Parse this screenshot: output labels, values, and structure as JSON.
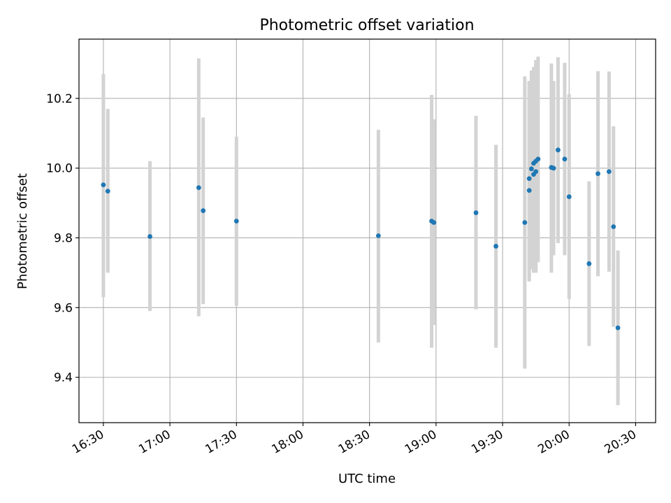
{
  "chart_data": {
    "type": "scatter",
    "title": "Photometric offset variation",
    "xlabel": "UTC time",
    "ylabel": "Photometric offset",
    "x_is_time": true,
    "xlim": [
      "16:19",
      "20:39"
    ],
    "ylim": [
      9.27,
      10.37
    ],
    "xticks": [
      "16:30",
      "17:00",
      "17:30",
      "18:00",
      "18:30",
      "19:00",
      "19:30",
      "20:00",
      "20:30"
    ],
    "yticks": [
      9.4,
      9.6,
      9.8,
      10.0,
      10.2
    ],
    "grid": true,
    "colors": {
      "point": "#1f77b4",
      "errorbar": "#d3d3d3",
      "grid": "#b0b0b0"
    },
    "points": [
      {
        "x": "16:30",
        "y": 9.952,
        "yerr_low": 9.63,
        "yerr_high": 10.27
      },
      {
        "x": "16:32",
        "y": 9.934,
        "yerr_low": 9.7,
        "yerr_high": 10.17
      },
      {
        "x": "16:51",
        "y": 9.804,
        "yerr_low": 9.59,
        "yerr_high": 10.02
      },
      {
        "x": "17:13",
        "y": 9.944,
        "yerr_low": 9.575,
        "yerr_high": 10.315
      },
      {
        "x": "17:15",
        "y": 9.878,
        "yerr_low": 9.61,
        "yerr_high": 10.145
      },
      {
        "x": "17:30",
        "y": 9.848,
        "yerr_low": 9.605,
        "yerr_high": 10.09
      },
      {
        "x": "18:34",
        "y": 9.806,
        "yerr_low": 9.5,
        "yerr_high": 10.11
      },
      {
        "x": "18:58",
        "y": 9.848,
        "yerr_low": 9.485,
        "yerr_high": 10.21
      },
      {
        "x": "18:59",
        "y": 9.844,
        "yerr_low": 9.55,
        "yerr_high": 10.14
      },
      {
        "x": "19:18",
        "y": 9.872,
        "yerr_low": 9.595,
        "yerr_high": 10.15
      },
      {
        "x": "19:27",
        "y": 9.776,
        "yerr_low": 9.485,
        "yerr_high": 10.067
      },
      {
        "x": "19:40",
        "y": 9.844,
        "yerr_low": 9.425,
        "yerr_high": 10.263
      },
      {
        "x": "19:42",
        "y": 9.936,
        "yerr_low": 9.675,
        "yerr_high": 10.25
      },
      {
        "x": "19:42",
        "y": 9.97,
        "yerr_low": 9.69,
        "yerr_high": 10.25
      },
      {
        "x": "19:43",
        "y": 9.998,
        "yerr_low": 9.71,
        "yerr_high": 10.28
      },
      {
        "x": "19:44",
        "y": 9.982,
        "yerr_low": 9.7,
        "yerr_high": 10.285
      },
      {
        "x": "19:44",
        "y": 10.014,
        "yerr_low": 9.72,
        "yerr_high": 10.29
      },
      {
        "x": "19:45",
        "y": 9.99,
        "yerr_low": 9.7,
        "yerr_high": 10.3
      },
      {
        "x": "19:45",
        "y": 10.02,
        "yerr_low": 9.73,
        "yerr_high": 10.31
      },
      {
        "x": "19:46",
        "y": 10.026,
        "yerr_low": 9.73,
        "yerr_high": 10.32
      },
      {
        "x": "19:52",
        "y": 10.002,
        "yerr_low": 9.7,
        "yerr_high": 10.3
      },
      {
        "x": "19:53",
        "y": 10.0,
        "yerr_low": 9.75,
        "yerr_high": 10.25
      },
      {
        "x": "19:55",
        "y": 10.052,
        "yerr_low": 9.785,
        "yerr_high": 10.318
      },
      {
        "x": "19:58",
        "y": 10.026,
        "yerr_low": 9.75,
        "yerr_high": 10.302
      },
      {
        "x": "20:00",
        "y": 9.918,
        "yerr_low": 9.625,
        "yerr_high": 10.212
      },
      {
        "x": "20:09",
        "y": 9.726,
        "yerr_low": 9.49,
        "yerr_high": 9.962
      },
      {
        "x": "20:13",
        "y": 9.984,
        "yerr_low": 9.69,
        "yerr_high": 10.278
      },
      {
        "x": "20:18",
        "y": 9.99,
        "yerr_low": 9.703,
        "yerr_high": 10.277
      },
      {
        "x": "20:20",
        "y": 9.832,
        "yerr_low": 9.545,
        "yerr_high": 10.12
      },
      {
        "x": "20:22",
        "y": 9.542,
        "yerr_low": 9.32,
        "yerr_high": 9.764
      }
    ]
  }
}
